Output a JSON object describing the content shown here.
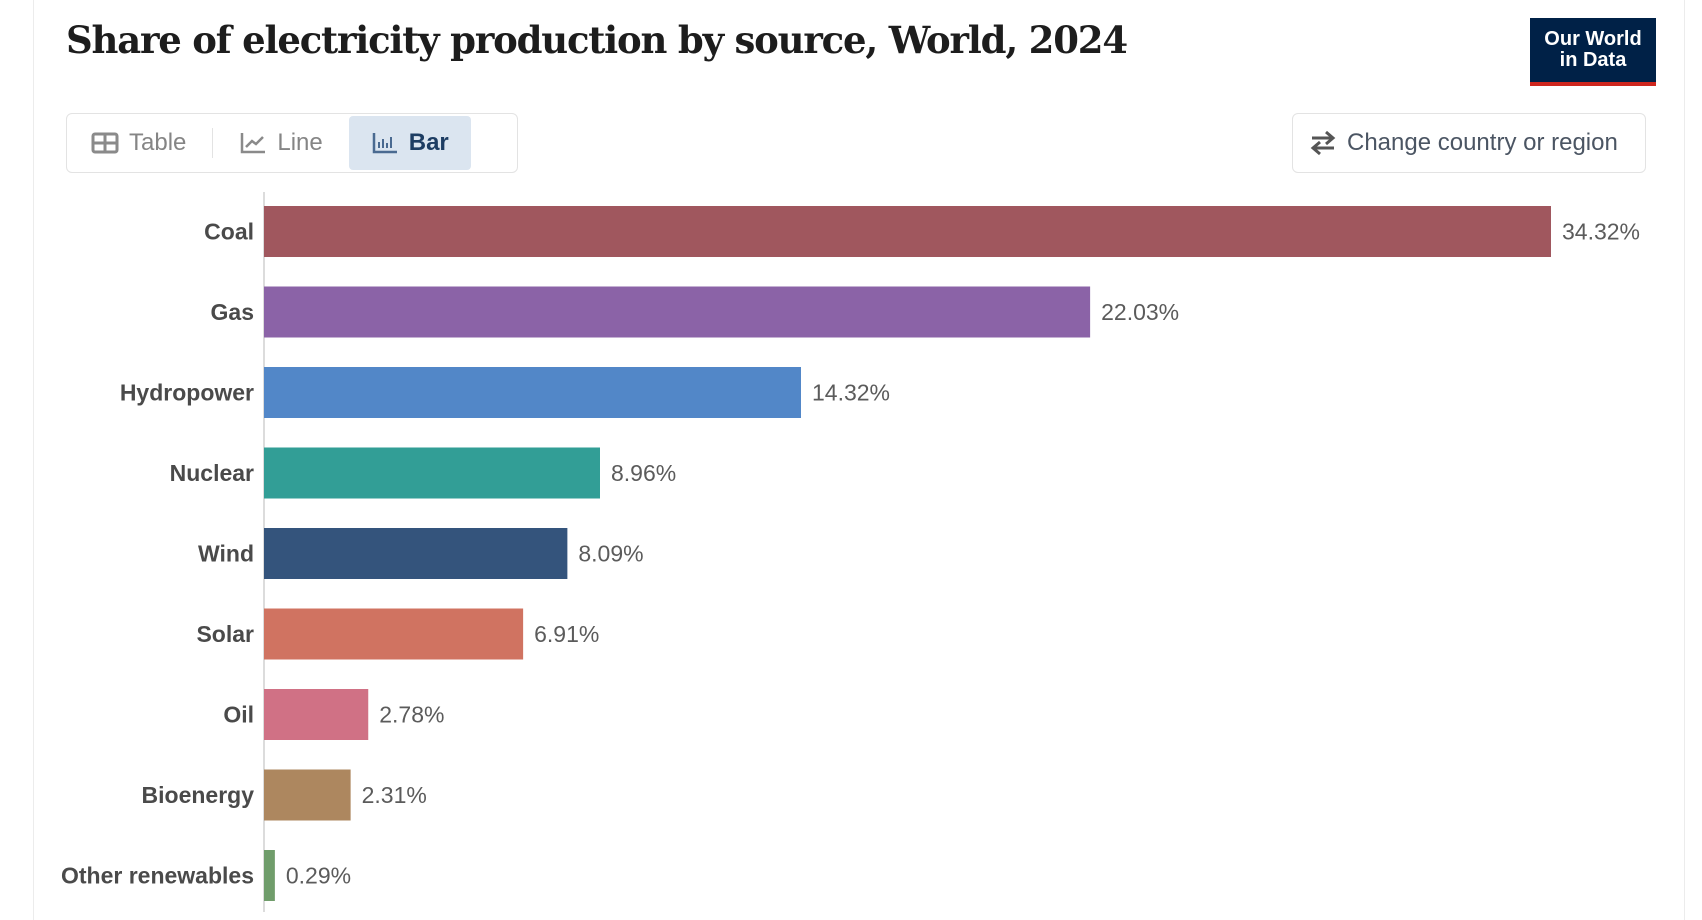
{
  "title": "Share of electricity production by source, World, 2024",
  "logo": {
    "line1": "Our World",
    "line2": "in Data",
    "bg_color": "#002147",
    "accent_color": "#ce261e"
  },
  "tabs": [
    {
      "label": "Table",
      "icon": "table-icon",
      "active": false
    },
    {
      "label": "Line",
      "icon": "line-chart-icon",
      "active": false
    },
    {
      "label": "Bar",
      "icon": "bar-chart-icon",
      "active": true
    }
  ],
  "change_region_button": {
    "label": "Change country or region",
    "icon": "swap-arrows-icon"
  },
  "chart_data": {
    "type": "bar",
    "orientation": "horizontal",
    "title": "Share of electricity production by source, World, 2024",
    "xlabel": "",
    "ylabel": "",
    "unit": "%",
    "xlim": [
      0,
      34.32
    ],
    "grid": false,
    "categories": [
      "Coal",
      "Gas",
      "Hydropower",
      "Nuclear",
      "Wind",
      "Solar",
      "Oil",
      "Bioenergy",
      "Other renewables"
    ],
    "values": [
      34.32,
      22.03,
      14.32,
      8.96,
      8.09,
      6.91,
      2.78,
      2.31,
      0.29
    ],
    "value_labels": [
      "34.32%",
      "22.03%",
      "14.32%",
      "8.96%",
      "8.09%",
      "6.91%",
      "2.78%",
      "2.31%",
      "0.29%"
    ],
    "colors": [
      "#a0575e",
      "#8b63a7",
      "#5287c8",
      "#329e96",
      "#34547c",
      "#d07361",
      "#d07185",
      "#ad875f",
      "#709d6b"
    ]
  }
}
